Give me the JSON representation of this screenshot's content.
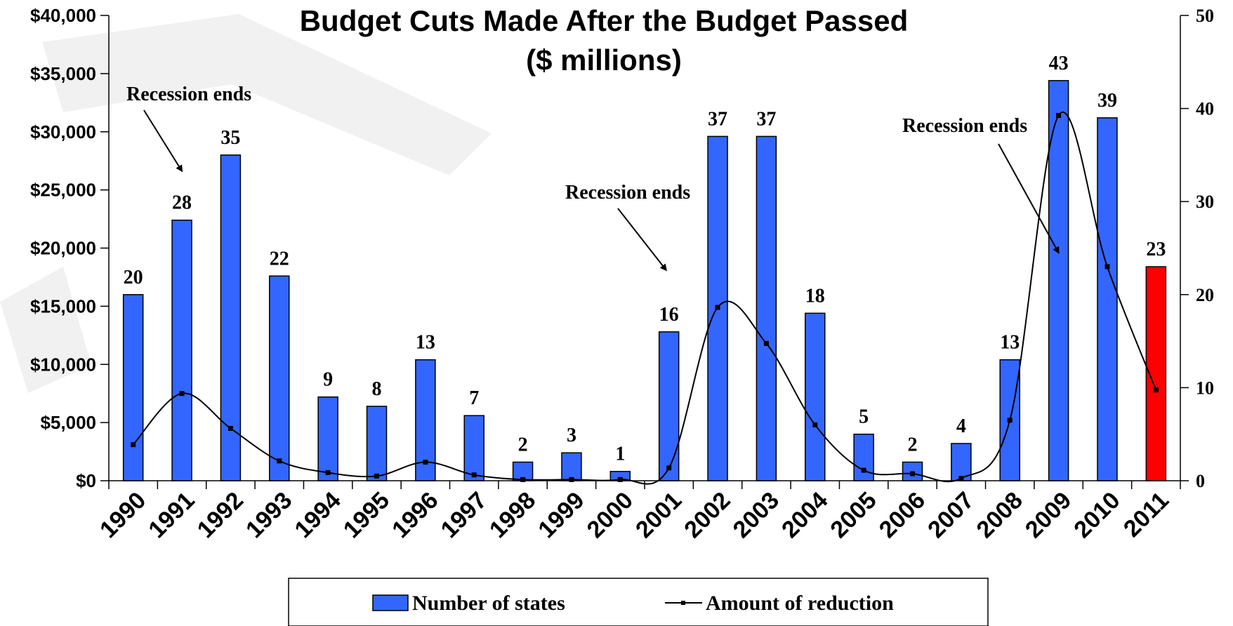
{
  "chart_data": {
    "type": "bar",
    "title": "Budget Cuts Made After the Budget Passed",
    "subtitle": "($ millions)",
    "categories": [
      "1990",
      "1991",
      "1992",
      "1993",
      "1994",
      "1995",
      "1996",
      "1997",
      "1998",
      "1999",
      "2000",
      "2001",
      "2002",
      "2003",
      "2004",
      "2005",
      "2006",
      "2007",
      "2008",
      "2009",
      "2010",
      "2011"
    ],
    "series": [
      {
        "name": "Number of states",
        "type": "bar",
        "axis": "right",
        "values": [
          20,
          28,
          35,
          22,
          9,
          8,
          13,
          7,
          2,
          3,
          1,
          16,
          37,
          37,
          18,
          5,
          2,
          4,
          13,
          43,
          39,
          23
        ],
        "labels": [
          "20",
          "28",
          "35",
          "22",
          "9",
          "8",
          "13",
          "7",
          "2",
          "3",
          "1",
          "16",
          "37",
          "37",
          "18",
          "5",
          "2",
          "4",
          "13",
          "43",
          "39",
          "23"
        ],
        "color": "#3366ff",
        "highlight_color": "#ff0000",
        "highlight_index": 21
      },
      {
        "name": "Amount of reduction",
        "type": "line",
        "axis": "left",
        "smooth": true,
        "values": [
          3100,
          7500,
          4500,
          1700,
          700,
          400,
          1600,
          500,
          100,
          100,
          100,
          1100,
          14900,
          11800,
          4800,
          900,
          600,
          200,
          5200,
          31400,
          18400,
          7800
        ],
        "color": "#000000"
      }
    ],
    "y_left": {
      "range": [
        0,
        40000
      ],
      "ticks": [
        0,
        5000,
        10000,
        15000,
        20000,
        25000,
        30000,
        35000,
        40000
      ],
      "tick_labels": [
        "$0",
        "$5,000",
        "$10,000",
        "$15,000",
        "$20,000",
        "$25,000",
        "$30,000",
        "$35,000",
        "$40,000"
      ]
    },
    "y_right": {
      "range": [
        0,
        50
      ],
      "ticks": [
        0,
        10,
        20,
        30,
        40,
        50
      ],
      "tick_labels": [
        "0",
        "10",
        "20",
        "30",
        "40",
        "50"
      ]
    },
    "annotations": [
      {
        "text": "Recession ends",
        "target_category": "1991"
      },
      {
        "text": "Recession ends",
        "target_category": "2001"
      },
      {
        "text": "Recession ends",
        "target_category": "2009"
      }
    ],
    "legend": {
      "position": "bottom",
      "entries": [
        "Number of states",
        "Amount of reduction"
      ]
    },
    "grid": false
  }
}
